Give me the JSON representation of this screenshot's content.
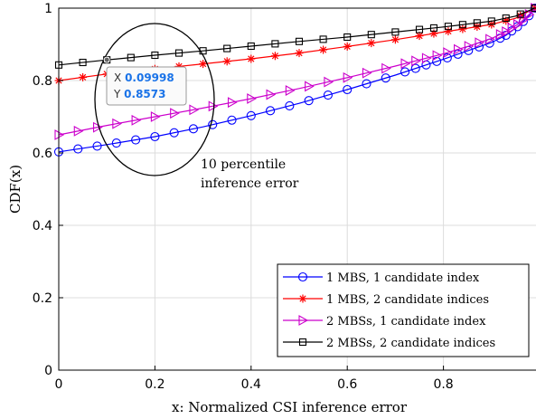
{
  "chart_data": {
    "type": "line",
    "xlabel": "x: Normalized CSI inference error",
    "ylabel": "CDF(x)",
    "xlim": [
      0,
      1
    ],
    "ylim": [
      0,
      1
    ],
    "x_ticks": [
      "0",
      "0.2",
      "0.4",
      "0.6",
      "0.8"
    ],
    "x_tick_values": [
      0,
      0.2,
      0.4,
      0.6,
      0.8
    ],
    "y_ticks": [
      "0",
      "0.2",
      "0.4",
      "0.6",
      "0.8",
      "1"
    ],
    "y_tick_values": [
      0,
      0.2,
      0.4,
      0.6,
      0.8,
      1
    ],
    "grid": true,
    "legend_position": "bottom-right",
    "series": [
      {
        "name": "1 MBS, 1 candidate index",
        "color": "#0000ff",
        "marker": "circle",
        "points": [
          [
            0,
            0.603
          ],
          [
            0.1,
            0.623
          ],
          [
            0.2,
            0.645
          ],
          [
            0.3,
            0.672
          ],
          [
            0.4,
            0.703
          ],
          [
            0.5,
            0.737
          ],
          [
            0.6,
            0.775
          ],
          [
            0.7,
            0.815
          ],
          [
            0.8,
            0.859
          ],
          [
            0.85,
            0.882
          ],
          [
            0.9,
            0.905
          ],
          [
            0.93,
            0.925
          ],
          [
            0.96,
            0.955
          ],
          [
            0.98,
            0.982
          ],
          [
            0.99,
            1.0
          ]
        ]
      },
      {
        "name": "1 MBS, 2 candidate indices",
        "color": "#ff0000",
        "marker": "asterisk",
        "points": [
          [
            0,
            0.8
          ],
          [
            0.1,
            0.818
          ],
          [
            0.2,
            0.832
          ],
          [
            0.3,
            0.846
          ],
          [
            0.4,
            0.86
          ],
          [
            0.5,
            0.876
          ],
          [
            0.6,
            0.894
          ],
          [
            0.7,
            0.913
          ],
          [
            0.8,
            0.934
          ],
          [
            0.9,
            0.955
          ],
          [
            0.95,
            0.972
          ],
          [
            0.99,
            1.0
          ]
        ]
      },
      {
        "name": "2 MBSs, 1 candidate index",
        "color": "#cc00cc",
        "marker": "triangle-right",
        "points": [
          [
            0,
            0.65
          ],
          [
            0.1,
            0.676
          ],
          [
            0.2,
            0.7
          ],
          [
            0.3,
            0.724
          ],
          [
            0.4,
            0.75
          ],
          [
            0.5,
            0.778
          ],
          [
            0.6,
            0.808
          ],
          [
            0.7,
            0.84
          ],
          [
            0.8,
            0.874
          ],
          [
            0.85,
            0.894
          ],
          [
            0.9,
            0.916
          ],
          [
            0.93,
            0.935
          ],
          [
            0.96,
            0.96
          ],
          [
            0.98,
            0.985
          ],
          [
            0.99,
            1.0
          ]
        ]
      },
      {
        "name": "2 MBSs, 2 candidate indices",
        "color": "#000000",
        "marker": "square",
        "points": [
          [
            0,
            0.843
          ],
          [
            0.1,
            0.857
          ],
          [
            0.2,
            0.87
          ],
          [
            0.3,
            0.882
          ],
          [
            0.4,
            0.895
          ],
          [
            0.5,
            0.908
          ],
          [
            0.6,
            0.92
          ],
          [
            0.7,
            0.934
          ],
          [
            0.8,
            0.948
          ],
          [
            0.9,
            0.964
          ],
          [
            0.95,
            0.978
          ],
          [
            0.99,
            1.0
          ]
        ]
      }
    ],
    "annotations": {
      "text_line1": "10 percentile",
      "text_line2": "inference error",
      "datatip": {
        "x_key": "X",
        "x_value": "0.09998",
        "y_key": "Y",
        "y_value": "0.8573"
      }
    }
  }
}
